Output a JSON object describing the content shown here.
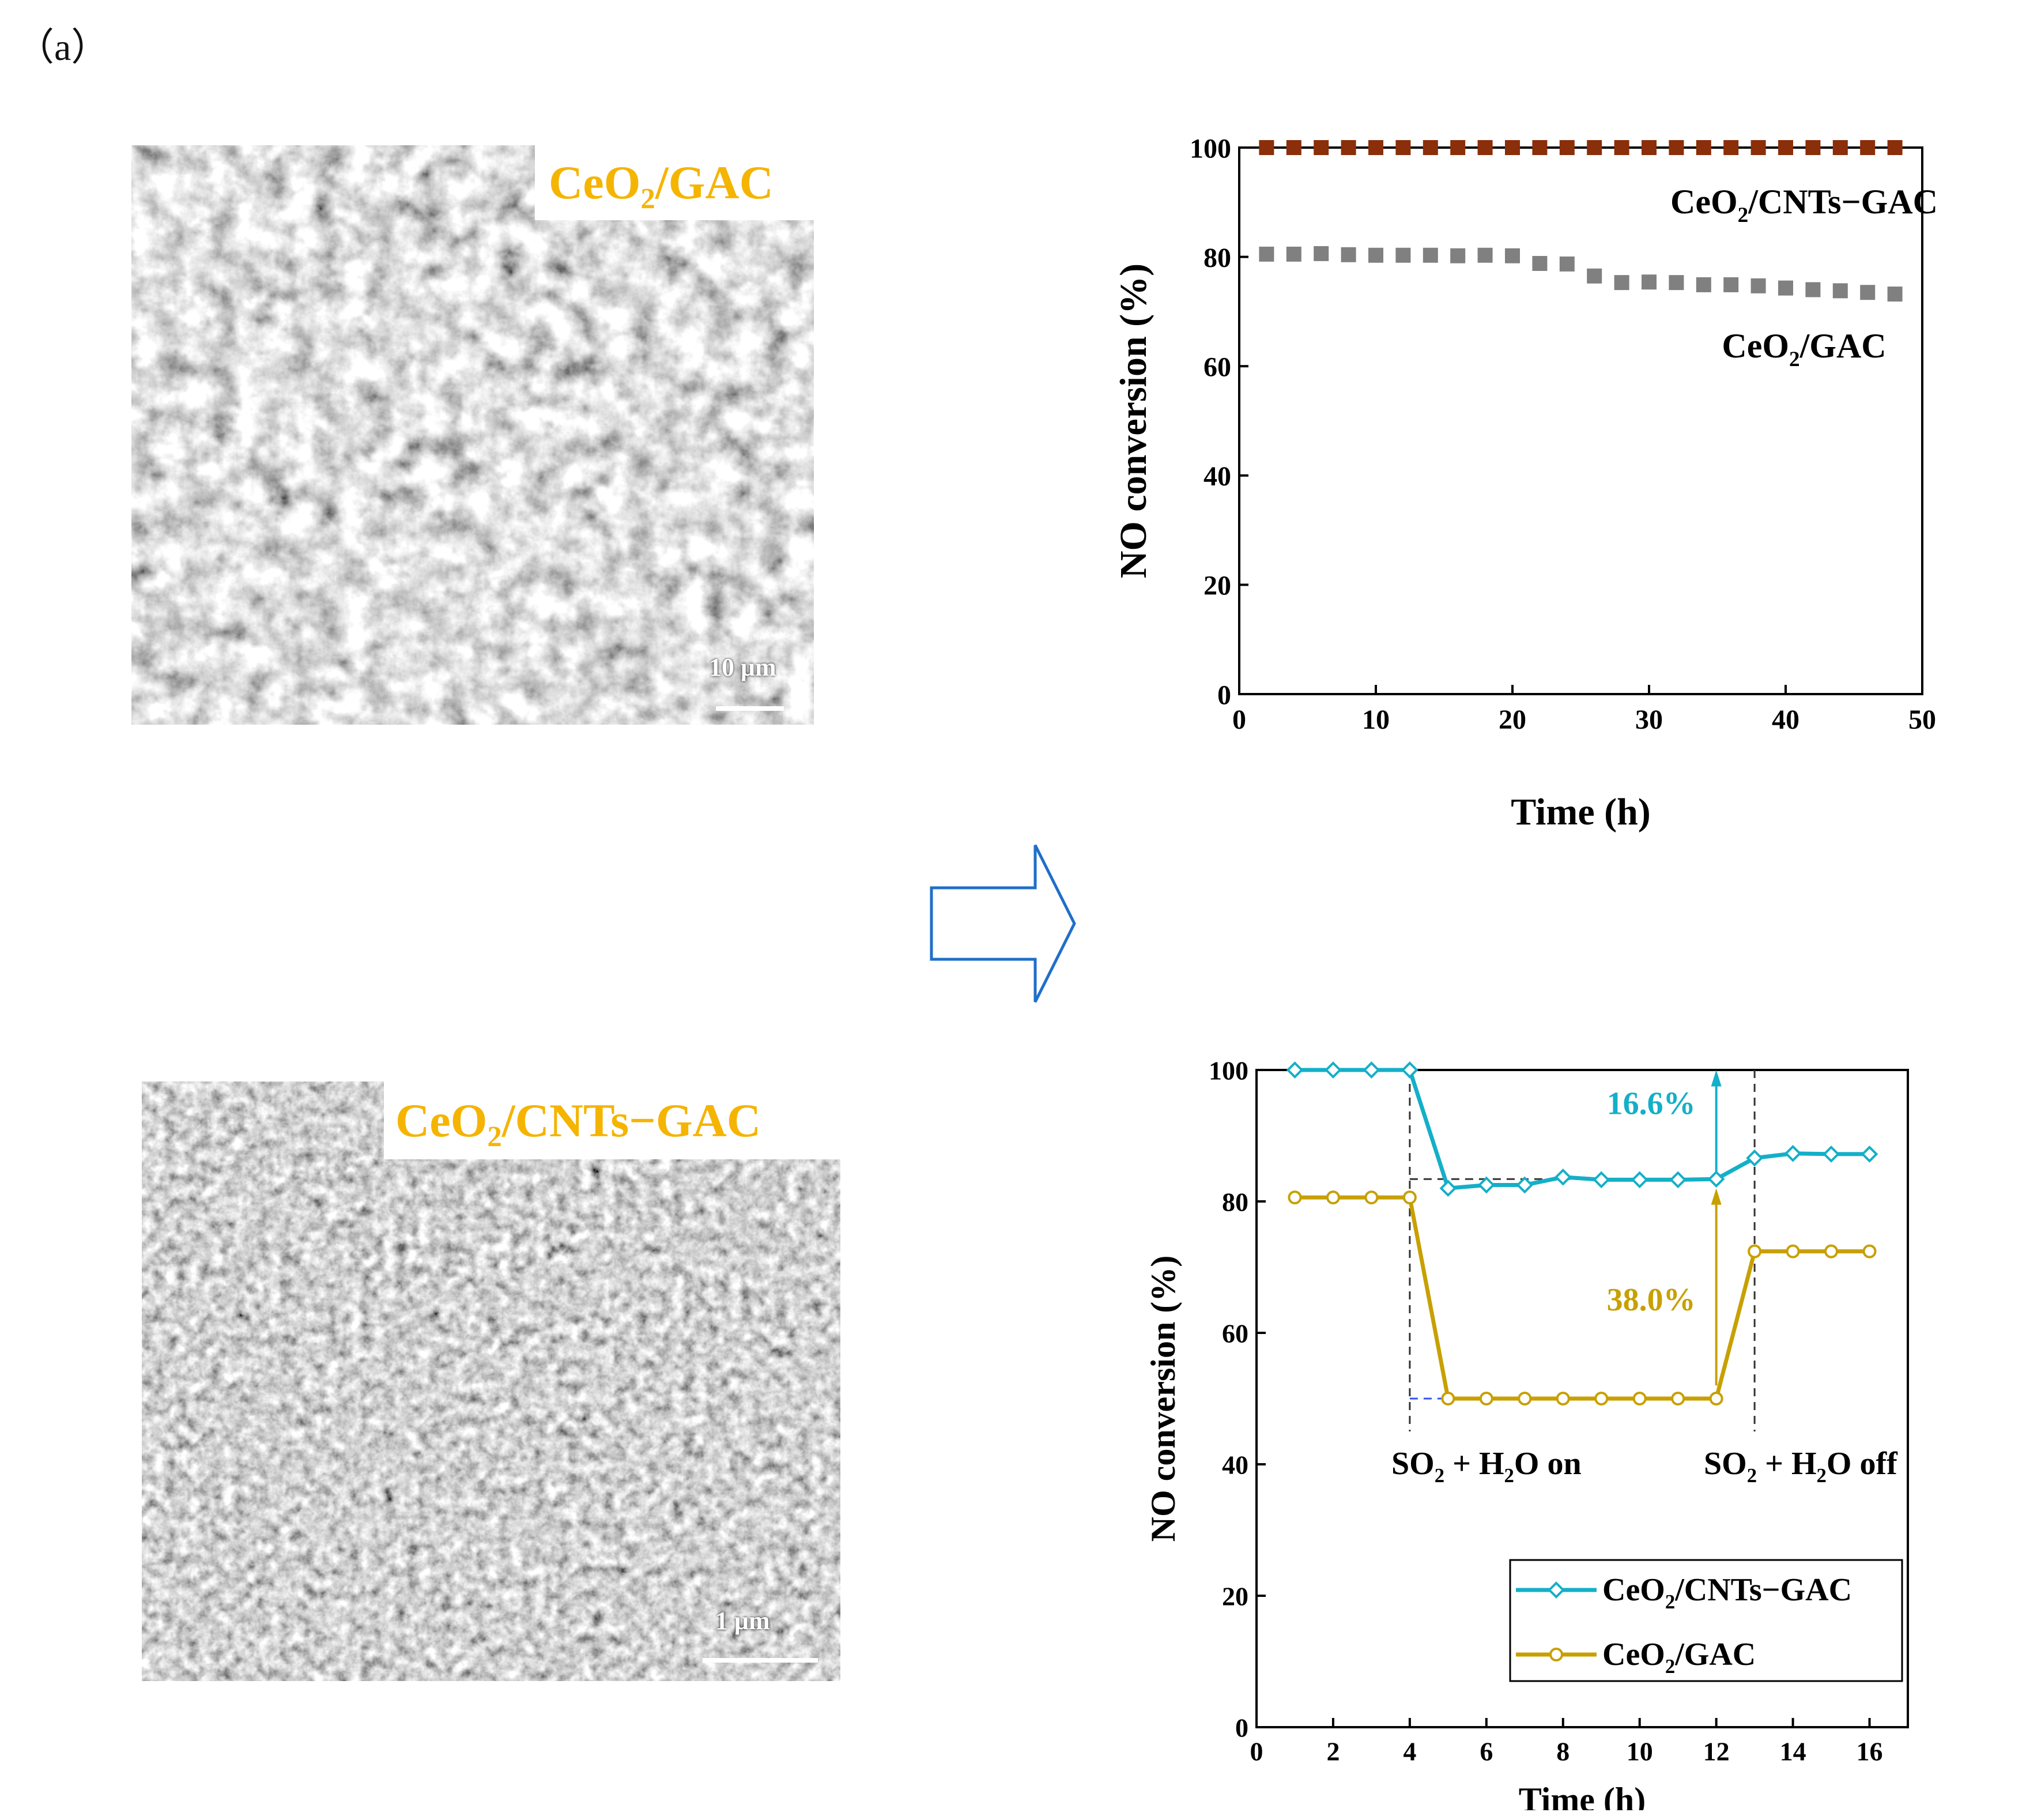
{
  "panel_label": "（a）",
  "sem_images": [
    {
      "label_main": "CeO",
      "label_sub": "2",
      "label_rest": "/GAC",
      "scale_text": "10 μm"
    },
    {
      "label_main": "CeO",
      "label_sub": "2",
      "label_rest": "/CNTs−GAC",
      "scale_text": "1 μm"
    }
  ],
  "colors": {
    "label_yellow": "#f5b400",
    "series_cyan": "#14afc8",
    "series_gold": "#c8a000",
    "brown_marker": "#8b2e0a",
    "gray_marker": "#808080",
    "arrow_blue": "#1f6fc8"
  },
  "arrow_icon": "right-outline-arrow",
  "chart_data": [
    {
      "type": "scatter",
      "xlabel": "Time (h)",
      "ylabel": "NO conversion (%)",
      "xlim": [
        0,
        50
      ],
      "ylim": [
        0,
        100
      ],
      "xticks": [
        "0",
        "10",
        "20",
        "30",
        "40",
        "50"
      ],
      "yticks": [
        "0",
        "20",
        "40",
        "60",
        "80",
        "100"
      ],
      "series": [
        {
          "name": "CeO2/CNTs−GAC",
          "label_main": "CeO",
          "label_sub": "2",
          "label_rest": "/CNTs−GAC",
          "marker": "square",
          "color": "#8b2e0a",
          "x": [
            2,
            4,
            6,
            8,
            10,
            12,
            14,
            16,
            18,
            20,
            22,
            24,
            26,
            28,
            30,
            32,
            34,
            36,
            38,
            40,
            42,
            44,
            46,
            48
          ],
          "y": [
            100,
            100,
            100,
            100,
            100,
            100,
            100,
            100,
            100,
            100,
            100,
            100,
            100,
            100,
            100,
            100,
            100,
            100,
            100,
            100,
            100,
            100,
            100,
            100
          ]
        },
        {
          "name": "CeO2/GAC",
          "label_main": "CeO",
          "label_sub": "2",
          "label_rest": "/GAC",
          "marker": "square",
          "color": "#808080",
          "x": [
            2,
            4,
            6,
            8,
            10,
            12,
            14,
            16,
            18,
            20,
            22,
            24,
            26,
            28,
            30,
            32,
            34,
            36,
            38,
            40,
            42,
            44,
            46,
            48
          ],
          "y": [
            80.5,
            80.5,
            80.6,
            80.4,
            80.3,
            80.3,
            80.3,
            80.2,
            80.3,
            80.2,
            78.8,
            78.7,
            76.5,
            75.3,
            75.4,
            75.3,
            74.9,
            74.9,
            74.7,
            74.3,
            74.0,
            73.8,
            73.5,
            73.2
          ]
        }
      ]
    },
    {
      "type": "line",
      "xlabel": "Time (h)",
      "ylabel": "NO conversion (%)",
      "xlim": [
        0,
        17
      ],
      "ylim": [
        0,
        100
      ],
      "xticks": [
        "0",
        "2",
        "4",
        "6",
        "8",
        "10",
        "12",
        "14",
        "16"
      ],
      "yticks": [
        "0",
        "20",
        "40",
        "60",
        "80",
        "100"
      ],
      "series": [
        {
          "name": "CeO2/CNTs−GAC",
          "label_main": "CeO",
          "label_sub": "2",
          "label_rest": "/CNTs−GAC",
          "marker": "diamond",
          "color": "#14afc8",
          "x": [
            1,
            2,
            3,
            4,
            5,
            6,
            7,
            8,
            9,
            10,
            11,
            12,
            13,
            14,
            15,
            16
          ],
          "y": [
            100,
            100,
            100,
            100,
            82,
            82.5,
            82.5,
            83.7,
            83.3,
            83.3,
            83.3,
            83.4,
            86.6,
            87.3,
            87.2,
            87.2
          ]
        },
        {
          "name": "CeO2/GAC",
          "label_main": "CeO",
          "label_sub": "2",
          "label_rest": "/GAC",
          "marker": "circle",
          "color": "#c8a000",
          "x": [
            1,
            2,
            3,
            4,
            5,
            6,
            7,
            8,
            9,
            10,
            11,
            12,
            13,
            14,
            15,
            16
          ],
          "y": [
            80.6,
            80.6,
            80.6,
            80.6,
            50,
            50,
            50,
            50,
            50,
            50,
            50,
            50,
            72.4,
            72.4,
            72.4,
            72.4
          ]
        }
      ],
      "annotations": [
        {
          "text": "16.6%",
          "color": "#14afc8"
        },
        {
          "text": "38.0%",
          "color": "#c8a000"
        },
        {
          "main": "SO",
          "sub1": "2",
          "mid": " + H",
          "sub2": "2",
          "rest": "O on"
        },
        {
          "main": "SO",
          "sub1": "2",
          "mid": " + H",
          "sub2": "2",
          "rest": "O off"
        }
      ]
    }
  ]
}
